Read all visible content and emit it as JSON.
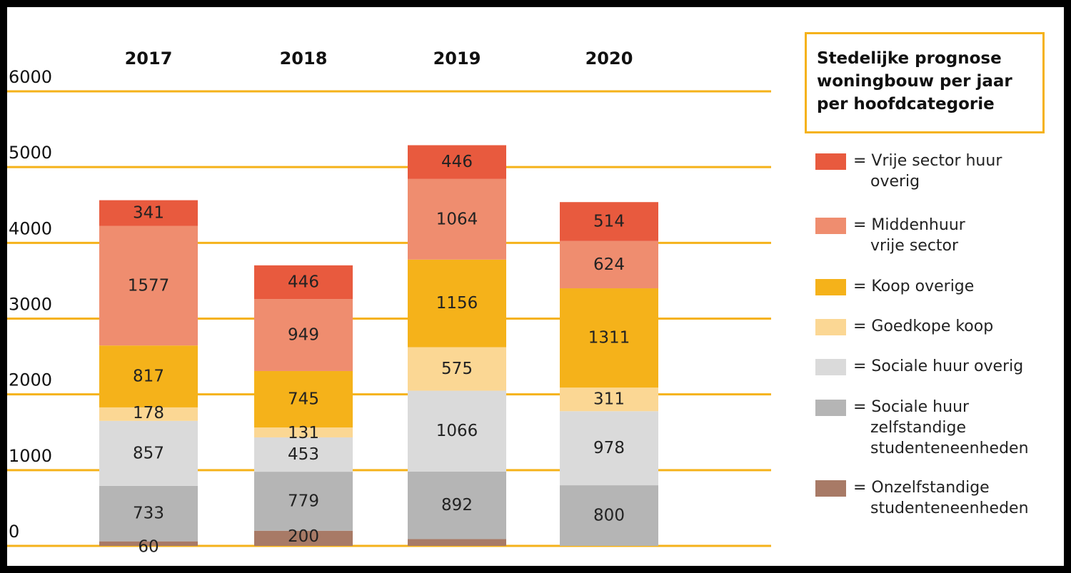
{
  "chart_data": {
    "type": "bar",
    "stacked": true,
    "categories": [
      "2017",
      "2018",
      "2019",
      "2020"
    ],
    "ylim": [
      0,
      6000
    ],
    "yticks": [
      "0",
      "1000",
      "2000",
      "3000",
      "4000",
      "5000",
      "6000"
    ],
    "grid": true,
    "legend_position": "right",
    "series": [
      {
        "name": "Onzelfstandige studenteneenheden",
        "color": "#a87a66",
        "values": [
          60,
          200,
          90,
          0
        ],
        "labels": [
          "60",
          "200",
          "",
          ""
        ]
      },
      {
        "name": "Sociale huur zelfstandige studenteneenheden",
        "color": "#b5b5b5",
        "values": [
          733,
          779,
          892,
          800
        ],
        "labels": [
          "733",
          "779",
          "892",
          "800"
        ]
      },
      {
        "name": "Sociale huur overig",
        "color": "#dadada",
        "values": [
          857,
          453,
          1066,
          978
        ],
        "labels": [
          "857",
          "453",
          "1066",
          "978"
        ]
      },
      {
        "name": "Goedkope koop",
        "color": "#fbd794",
        "values": [
          178,
          131,
          575,
          311
        ],
        "labels": [
          "178",
          "131",
          "575",
          "311"
        ]
      },
      {
        "name": "Koop overige",
        "color": "#f5b21a",
        "values": [
          817,
          745,
          1156,
          1311
        ],
        "labels": [
          "817",
          "745",
          "1156",
          "1311"
        ]
      },
      {
        "name": "Middenhuur vrije sector",
        "color": "#ef8d6f",
        "values": [
          1577,
          949,
          1064,
          624
        ],
        "labels": [
          "1577",
          "949",
          "1064",
          "624"
        ]
      },
      {
        "name": "Vrije sector huur overig",
        "color": "#e85a3e",
        "values": [
          341,
          446,
          446,
          514
        ],
        "labels": [
          "341",
          "446",
          "446",
          "514"
        ]
      }
    ]
  },
  "legend": {
    "title_lines": [
      "Stedelijke prognose",
      "woningbouw per jaar",
      "per hoofdcategorie"
    ],
    "items": [
      {
        "color": "#e85a3e",
        "line1": "= Vrije sector huur",
        "line2": "overig"
      },
      {
        "color": "#ef8d6f",
        "line1": "= Middenhuur",
        "line2": "vrije sector"
      },
      {
        "color": "#f5b21a",
        "line1": "= Koop overige",
        "line2": ""
      },
      {
        "color": "#fbd794",
        "line1": "= Goedkope koop",
        "line2": ""
      },
      {
        "color": "#dadada",
        "line1": "= Sociale huur overig",
        "line2": ""
      },
      {
        "color": "#b5b5b5",
        "line1": "= Sociale huur",
        "line2": "zelfstandige",
        "line3": "studenteneenheden"
      },
      {
        "color": "#a87a66",
        "line1": "= Onzelfstandige",
        "line2": "studenteneenheden"
      }
    ]
  },
  "colors": {
    "gridline": "#f5b21a",
    "frame": "#000000",
    "background": "#ffffff"
  }
}
